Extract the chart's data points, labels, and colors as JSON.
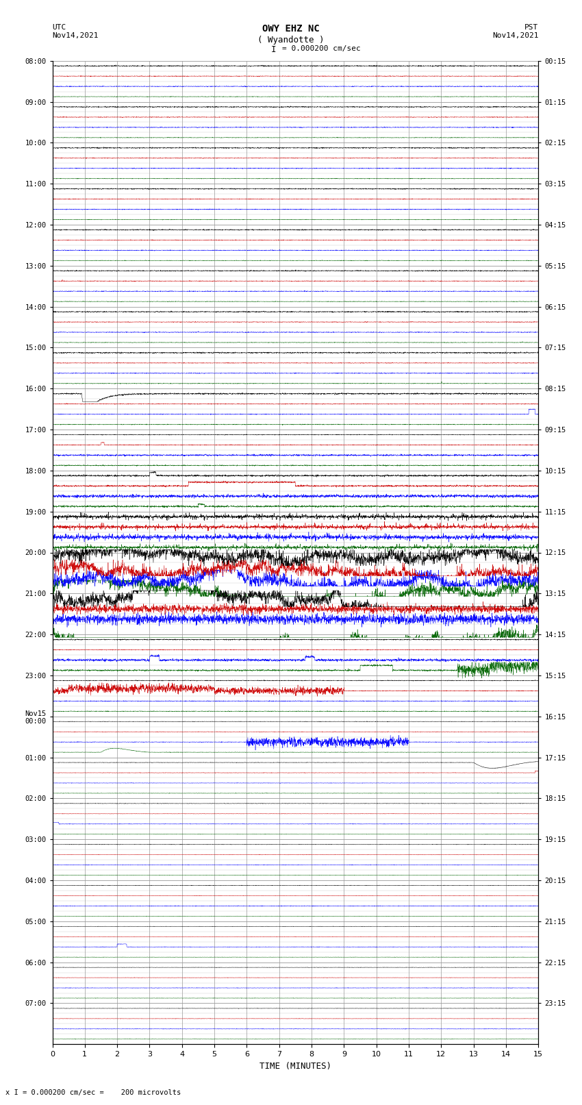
{
  "title_line1": "OWY EHZ NC",
  "title_line2": "( Wyandotte )",
  "scale_label": "I = 0.000200 cm/sec",
  "bottom_label": "x I = 0.000200 cm/sec =    200 microvolts",
  "utc_label": "UTC\nNov14,2021",
  "pst_label": "PST\nNov14,2021",
  "xlabel": "TIME (MINUTES)",
  "xlim": [
    0,
    15
  ],
  "xticks": [
    0,
    1,
    2,
    3,
    4,
    5,
    6,
    7,
    8,
    9,
    10,
    11,
    12,
    13,
    14,
    15
  ],
  "num_rows": 24,
  "background_color": "#ffffff",
  "grid_color": "#999999",
  "fig_width": 8.5,
  "fig_height": 16.13,
  "utc_hours": [
    "08:00",
    "09:00",
    "10:00",
    "11:00",
    "12:00",
    "13:00",
    "14:00",
    "15:00",
    "16:00",
    "17:00",
    "18:00",
    "19:00",
    "20:00",
    "21:00",
    "22:00",
    "23:00",
    "Nov15\n00:00",
    "01:00",
    "02:00",
    "03:00",
    "04:00",
    "05:00",
    "06:00",
    "07:00"
  ],
  "pst_hours": [
    "00:15",
    "01:15",
    "02:15",
    "03:15",
    "04:15",
    "05:15",
    "06:15",
    "07:15",
    "08:15",
    "09:15",
    "10:15",
    "11:15",
    "12:15",
    "13:15",
    "14:15",
    "15:15",
    "16:15",
    "17:15",
    "18:15",
    "19:15",
    "20:15",
    "21:15",
    "22:15",
    "23:15"
  ]
}
